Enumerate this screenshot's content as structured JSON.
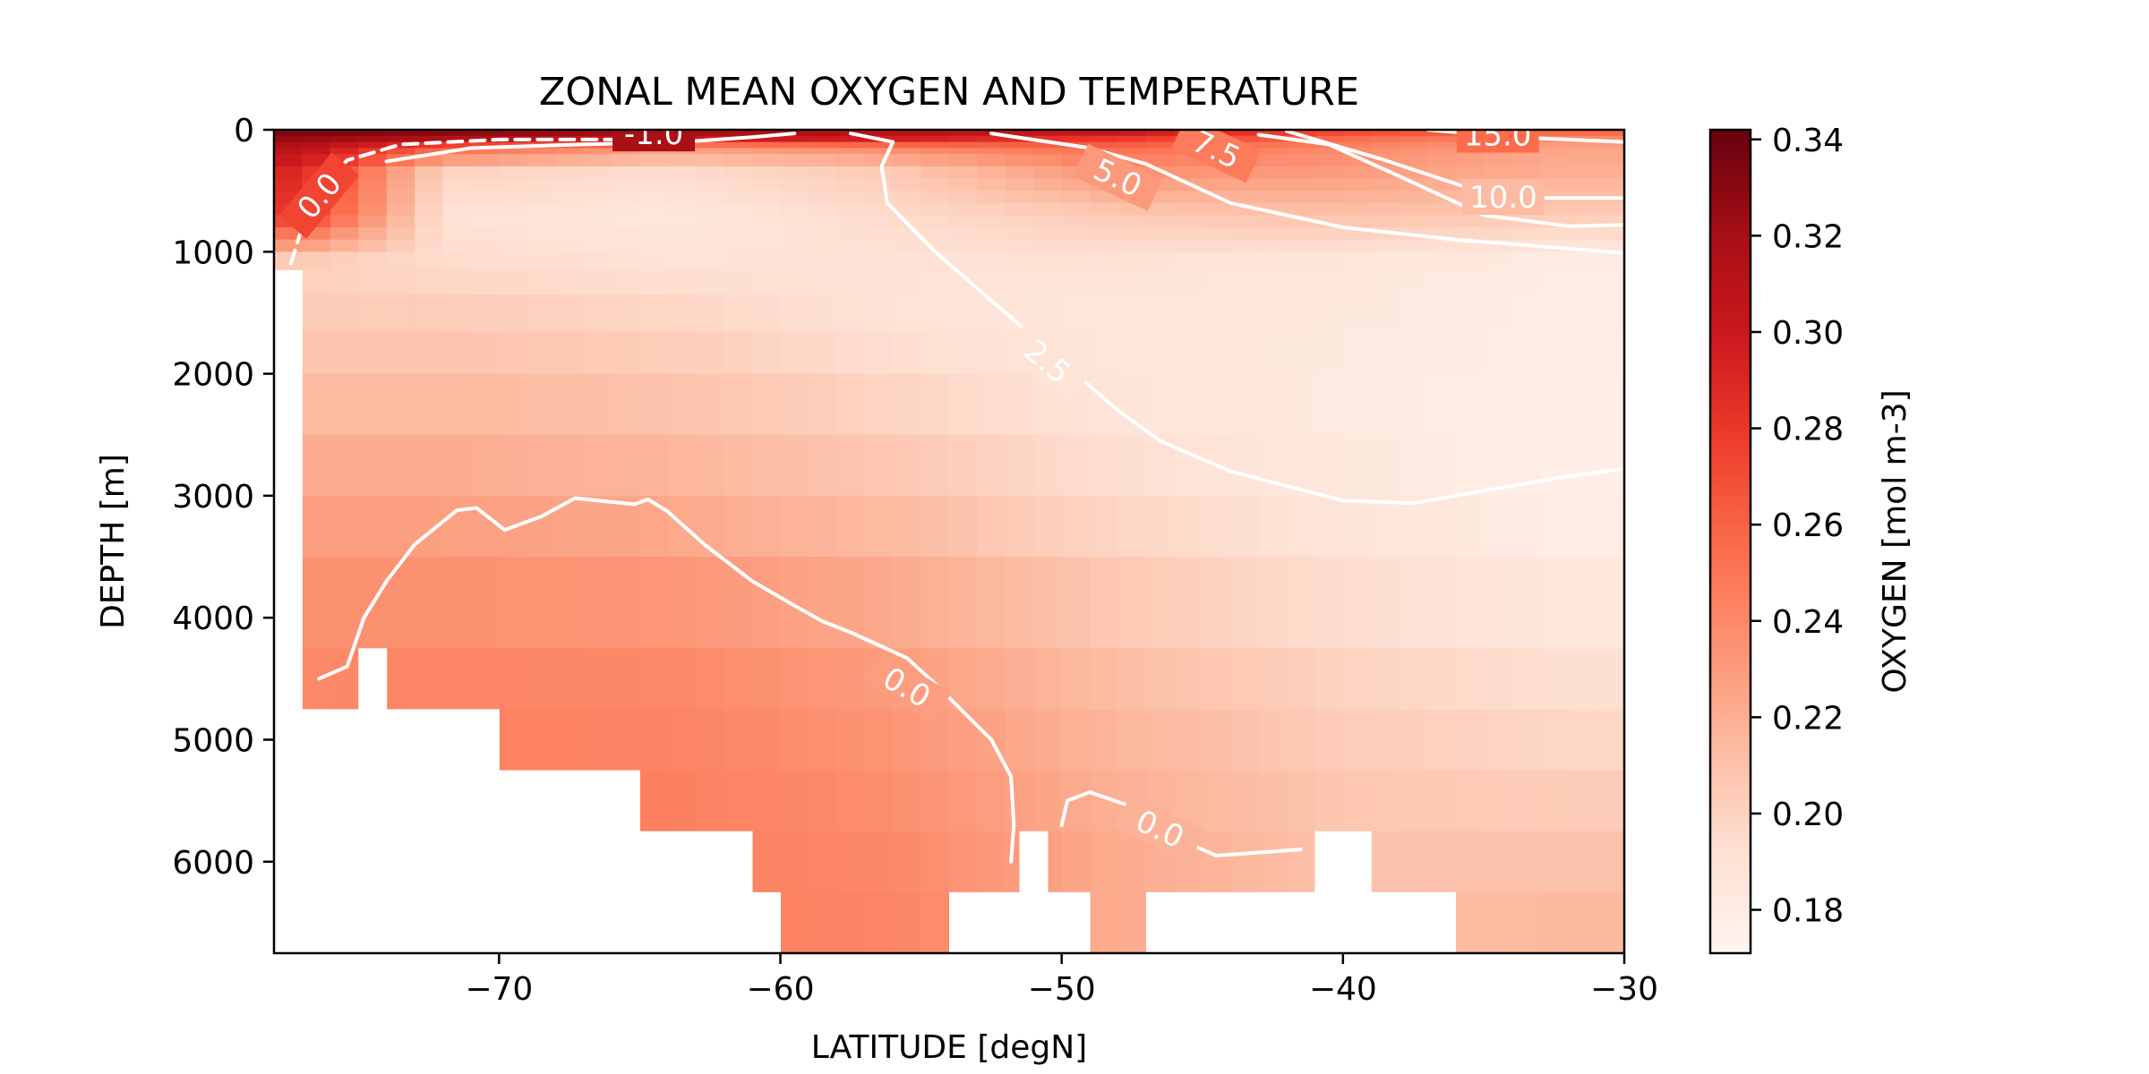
{
  "chart_data": {
    "type": "heatmap",
    "title": "ZONAL MEAN OXYGEN AND TEMPERATURE",
    "xlabel": "LATITUDE [degN]",
    "ylabel": "DEPTH [m]",
    "colorbar_label": "OXYGEN [mol m-3]",
    "xlim": [
      -78,
      -30
    ],
    "ylim": [
      6750,
      0
    ],
    "x_ticks": [
      -70,
      -60,
      -50,
      -40,
      -30
    ],
    "x_tick_labels": [
      "−70",
      "−60",
      "−50",
      "−40",
      "−30"
    ],
    "y_ticks": [
      0,
      1000,
      2000,
      3000,
      4000,
      5000,
      6000
    ],
    "y_tick_labels": [
      "0",
      "1000",
      "2000",
      "3000",
      "4000",
      "5000",
      "6000"
    ],
    "colorbar_range": [
      0.171,
      0.342
    ],
    "colorbar_ticks": [
      0.18,
      0.2,
      0.22,
      0.24,
      0.26,
      0.28,
      0.3,
      0.32,
      0.34
    ],
    "colorbar_tick_labels": [
      "0.18",
      "0.20",
      "0.22",
      "0.24",
      "0.26",
      "0.28",
      "0.30",
      "0.32",
      "0.34"
    ],
    "colormap": [
      "#fff5f0",
      "#fee0d2",
      "#fcbba1",
      "#fc9272",
      "#fb6a4a",
      "#ef3b2c",
      "#cb181d",
      "#a50f15",
      "#67000d"
    ],
    "contour_color": "#ffffff",
    "depth_levels": [
      0,
      50,
      100,
      150,
      200,
      300,
      400,
      500,
      600,
      700,
      800,
      900,
      1000,
      1150,
      1350,
      1650,
      2000,
      2500,
      3000,
      3500,
      4250,
      4750,
      5250,
      5750,
      6250,
      6750
    ],
    "oxygen_profile": {
      "latitudes": [
        -77,
        -72,
        -64,
        -56,
        -48,
        -40,
        -32
      ],
      "depths": [
        25,
        75,
        150,
        350,
        700,
        1100,
        1600,
        2300,
        3000,
        3800,
        4500,
        5200,
        6000,
        6500
      ],
      "values": [
        [
          0.335,
          0.33,
          0.32,
          0.31,
          0.3,
          0.27,
          0.255
        ],
        [
          0.325,
          0.315,
          0.3,
          0.295,
          0.28,
          0.255,
          0.24
        ],
        [
          0.31,
          0.26,
          0.23,
          0.24,
          0.255,
          0.24,
          0.225
        ],
        [
          0.29,
          0.2,
          0.195,
          0.205,
          0.235,
          0.23,
          0.22
        ],
        [
          0.28,
          0.19,
          0.185,
          0.195,
          0.205,
          0.21,
          0.205
        ],
        [
          0.2,
          0.195,
          0.19,
          0.19,
          0.19,
          0.185,
          0.18
        ],
        [
          0.205,
          0.205,
          0.2,
          0.19,
          0.185,
          0.183,
          0.18
        ],
        [
          0.215,
          0.215,
          0.21,
          0.2,
          0.188,
          0.182,
          0.178
        ],
        [
          0.225,
          0.225,
          0.22,
          0.21,
          0.195,
          0.185,
          0.178
        ],
        [
          0.235,
          0.235,
          0.232,
          0.222,
          0.205,
          0.193,
          0.185
        ],
        [
          0.24,
          0.242,
          0.24,
          0.23,
          0.212,
          0.2,
          0.192
        ],
        [
          0.242,
          0.245,
          0.244,
          0.235,
          0.218,
          0.205,
          0.2
        ],
        [
          0.242,
          0.246,
          0.246,
          0.24,
          0.222,
          0.21,
          0.21
        ],
        [
          0.242,
          0.246,
          0.246,
          0.242,
          0.222,
          0.212,
          0.215
        ]
      ]
    },
    "bathymetry": {
      "latitudes": [
        -78,
        -77,
        -75,
        -74,
        -73,
        -70,
        -65,
        -61,
        -60,
        -54,
        -51.5,
        -50.5,
        -49,
        -47,
        -41,
        -39,
        -36,
        -30
      ],
      "bottom_depth": [
        1150,
        4750,
        4250,
        4750,
        4750,
        5250,
        5750,
        6250,
        6750,
        6250,
        5750,
        6250,
        6750,
        6250,
        5750,
        6250,
        6750,
        6750
      ]
    },
    "temperature_contours": [
      {
        "level": "0.0",
        "label": "0.0",
        "dashed": true,
        "points": [
          [
            -77.4,
            1100
          ],
          [
            -77.0,
            800
          ],
          [
            -76.4,
            480
          ],
          [
            -75.4,
            250
          ],
          [
            -73.5,
            120
          ],
          [
            -70,
            80
          ],
          [
            -65.5,
            80
          ]
        ],
        "label_at": [
          -76.4,
          540
        ],
        "label_angle": -50
      },
      {
        "level": "-1.0",
        "label": "-1.0",
        "dashed": false,
        "points": [
          [
            -74,
            260
          ],
          [
            -71,
            150
          ],
          [
            -67,
            120
          ],
          [
            -63.5,
            100
          ],
          [
            -61,
            60
          ],
          [
            -59.5,
            30
          ]
        ],
        "label_at": [
          -64.5,
          30
        ],
        "label_angle": 0
      },
      {
        "level": "2.5",
        "label": "2.5",
        "dashed": false,
        "points": [
          [
            -57.5,
            30
          ],
          [
            -56,
            100
          ],
          [
            -56.4,
            300
          ],
          [
            -56.2,
            600
          ],
          [
            -54.5,
            1000
          ],
          [
            -52,
            1500
          ],
          [
            -49.5,
            2000
          ],
          [
            -48,
            2300
          ],
          [
            -46.5,
            2550
          ],
          [
            -44,
            2800
          ],
          [
            -40,
            3040
          ],
          [
            -37.5,
            3060
          ],
          [
            -35,
            2960
          ],
          [
            -32,
            2840
          ],
          [
            -30,
            2780
          ]
        ],
        "label_at": [
          -50.5,
          1900
        ],
        "label_angle": 40
      },
      {
        "level": "5.0",
        "label": "5.0",
        "dashed": false,
        "points": [
          [
            -52.5,
            30
          ],
          [
            -49,
            150
          ],
          [
            -47,
            280
          ],
          [
            -44,
            600
          ],
          [
            -40,
            800
          ],
          [
            -36,
            900
          ],
          [
            -30,
            1010
          ]
        ],
        "label_at": [
          -48,
          390
        ],
        "label_angle": 25
      },
      {
        "level": "7.5",
        "label": "7.5",
        "dashed": false,
        "points": [
          [
            -43,
            40
          ],
          [
            -40.5,
            120
          ],
          [
            -38,
            380
          ],
          [
            -35,
            700
          ],
          [
            -32,
            790
          ],
          [
            -30,
            780
          ]
        ],
        "label_at": [
          -44.5,
          160
        ],
        "label_angle": 25
      },
      {
        "level": "10.0",
        "label": "10.0",
        "dashed": false,
        "points": [
          [
            -42,
            10
          ],
          [
            -38.5,
            250
          ],
          [
            -35.5,
            480
          ],
          [
            -33,
            560
          ],
          [
            -30,
            560
          ]
        ],
        "label_at": [
          -34.3,
          550
        ],
        "label_angle": 0
      },
      {
        "level": "15.0",
        "label": "15.0",
        "dashed": false,
        "points": [
          [
            -37,
            0
          ],
          [
            -34,
            60
          ],
          [
            -30,
            100
          ]
        ],
        "label_at": [
          -34.5,
          40
        ],
        "label_angle": 0
      },
      {
        "level": "0.0",
        "label": "0.0",
        "dashed": false,
        "points": [
          [
            -76.4,
            4500
          ],
          [
            -75.4,
            4400
          ],
          [
            -74.8,
            4000
          ],
          [
            -74,
            3700
          ],
          [
            -73,
            3400
          ],
          [
            -71.5,
            3120
          ],
          [
            -70.8,
            3100
          ],
          [
            -69.8,
            3280
          ],
          [
            -68.5,
            3170
          ],
          [
            -67.3,
            3020
          ],
          [
            -65.2,
            3070
          ],
          [
            -64.7,
            3030
          ],
          [
            -64,
            3130
          ],
          [
            -62.7,
            3400
          ],
          [
            -61,
            3700
          ],
          [
            -59.5,
            3900
          ],
          [
            -58.5,
            4030
          ],
          [
            -57.5,
            4120
          ],
          [
            -55.5,
            4330
          ],
          [
            -54.5,
            4540
          ],
          [
            -52.5,
            5000
          ],
          [
            -51.8,
            5300
          ],
          [
            -51.7,
            5700
          ],
          [
            -51.8,
            6000
          ]
        ],
        "label_at": [
          -55.5,
          4570
        ],
        "label_angle": 30
      },
      {
        "level": "0.0",
        "label": "0.0",
        "dashed": false,
        "points": [
          [
            -50,
            5700
          ],
          [
            -49.8,
            5500
          ],
          [
            -49,
            5430
          ],
          [
            -47.5,
            5550
          ],
          [
            -45.5,
            5850
          ],
          [
            -44.5,
            5950
          ],
          [
            -41.5,
            5900
          ]
        ],
        "label_at": [
          -46.5,
          5730
        ],
        "label_angle": 25
      }
    ]
  }
}
